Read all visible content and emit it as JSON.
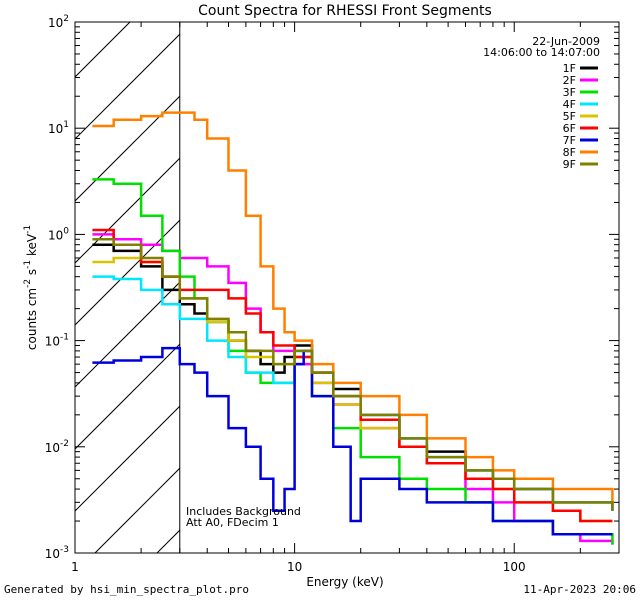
{
  "chart_data": {
    "type": "line",
    "title": "Count Spectra for RHESSI Front Segments",
    "xlabel": "Energy (keV)",
    "ylabel_parts": [
      "counts cm",
      "-2",
      " s",
      "-1",
      " keV",
      "-1"
    ],
    "xscale": "log",
    "yscale": "log",
    "xlim": [
      1,
      300
    ],
    "ylim": [
      0.001,
      100
    ],
    "x_ticks": [
      {
        "v": 1,
        "label": "1"
      },
      {
        "v": 10,
        "label": "10"
      },
      {
        "v": 100,
        "label": "100"
      }
    ],
    "y_ticks": [
      {
        "v": 0.001,
        "base": "10",
        "exp": "-3"
      },
      {
        "v": 0.01,
        "base": "10",
        "exp": "-2"
      },
      {
        "v": 0.1,
        "base": "10",
        "exp": "-1"
      },
      {
        "v": 1,
        "base": "10",
        "exp": "0"
      },
      {
        "v": 10,
        "base": "10",
        "exp": "1"
      },
      {
        "v": 100,
        "base": "10",
        "exp": "2"
      }
    ],
    "date_label": "22-Jun-2009",
    "time_label": "14:06:00 to 14:07:00",
    "annotation_lines": [
      "Includes Background",
      "Att A0, FDecim 1"
    ],
    "hatched_region_max_energy": 3,
    "series": [
      {
        "name": "1F",
        "color": "#000000",
        "points": [
          [
            1.2,
            0.8
          ],
          [
            1.5,
            0.7
          ],
          [
            2,
            0.5
          ],
          [
            2.5,
            0.3
          ],
          [
            3,
            0.22
          ],
          [
            3.5,
            0.18
          ],
          [
            4,
            0.15
          ],
          [
            5,
            0.1
          ],
          [
            6,
            0.08
          ],
          [
            7,
            0.06
          ],
          [
            8,
            0.05
          ],
          [
            9,
            0.07
          ],
          [
            10,
            0.09
          ],
          [
            12,
            0.05
          ],
          [
            15,
            0.035
          ],
          [
            20,
            0.02
          ],
          [
            30,
            0.012
          ],
          [
            40,
            0.009
          ],
          [
            60,
            0.006
          ],
          [
            80,
            0.005
          ],
          [
            100,
            0.004
          ],
          [
            150,
            0.003
          ],
          [
            200,
            0.003
          ],
          [
            280,
            0.0025
          ]
        ]
      },
      {
        "name": "2F",
        "color": "#ff00ff",
        "points": [
          [
            1.2,
            1.0
          ],
          [
            1.5,
            0.9
          ],
          [
            2,
            0.8
          ],
          [
            2.5,
            0.7
          ],
          [
            3,
            0.6
          ],
          [
            4,
            0.5
          ],
          [
            5,
            0.35
          ],
          [
            6,
            0.2
          ],
          [
            7,
            0.12
          ],
          [
            8,
            0.08
          ],
          [
            10,
            0.06
          ],
          [
            12,
            0.04
          ],
          [
            15,
            0.025
          ],
          [
            20,
            0.015
          ],
          [
            30,
            0.01
          ],
          [
            40,
            0.007
          ],
          [
            60,
            0.004
          ],
          [
            80,
            0.003
          ],
          [
            100,
            0.002
          ],
          [
            150,
            0.0015
          ],
          [
            200,
            0.0013
          ],
          [
            280,
            0.0012
          ]
        ]
      },
      {
        "name": "3F",
        "color": "#00e000",
        "points": [
          [
            1.2,
            3.3
          ],
          [
            1.5,
            3.0
          ],
          [
            2,
            1.5
          ],
          [
            2.5,
            0.7
          ],
          [
            3,
            0.4
          ],
          [
            3.5,
            0.25
          ],
          [
            4,
            0.15
          ],
          [
            5,
            0.08
          ],
          [
            6,
            0.05
          ],
          [
            7,
            0.04
          ],
          [
            8,
            0.04
          ],
          [
            10,
            0.08
          ],
          [
            12,
            0.03
          ],
          [
            15,
            0.015
          ],
          [
            20,
            0.008
          ],
          [
            30,
            0.005
          ],
          [
            40,
            0.004
          ],
          [
            60,
            0.003
          ],
          [
            80,
            0.002
          ],
          [
            100,
            0.002
          ],
          [
            150,
            0.0015
          ],
          [
            200,
            0.0015
          ],
          [
            280,
            0.0012
          ]
        ]
      },
      {
        "name": "4F",
        "color": "#00e6ff",
        "points": [
          [
            1.2,
            0.4
          ],
          [
            1.5,
            0.38
          ],
          [
            2,
            0.3
          ],
          [
            2.5,
            0.22
          ],
          [
            3,
            0.16
          ],
          [
            4,
            0.1
          ],
          [
            5,
            0.07
          ],
          [
            6,
            0.05
          ],
          [
            8,
            0.04
          ],
          [
            10,
            0.08
          ],
          [
            12,
            0.05
          ],
          [
            15,
            0.03
          ],
          [
            20,
            0.02
          ],
          [
            30,
            0.012
          ],
          [
            40,
            0.008
          ],
          [
            60,
            0.006
          ],
          [
            80,
            0.005
          ],
          [
            100,
            0.004
          ],
          [
            150,
            0.003
          ],
          [
            200,
            0.003
          ],
          [
            280,
            0.0025
          ]
        ]
      },
      {
        "name": "5F",
        "color": "#d8c400",
        "points": [
          [
            1.2,
            0.55
          ],
          [
            1.5,
            0.6
          ],
          [
            2,
            0.55
          ],
          [
            2.5,
            0.4
          ],
          [
            3,
            0.25
          ],
          [
            4,
            0.15
          ],
          [
            5,
            0.1
          ],
          [
            6,
            0.07
          ],
          [
            8,
            0.06
          ],
          [
            10,
            0.07
          ],
          [
            12,
            0.04
          ],
          [
            15,
            0.025
          ],
          [
            20,
            0.015
          ],
          [
            30,
            0.01
          ],
          [
            40,
            0.007
          ],
          [
            60,
            0.005
          ],
          [
            80,
            0.004
          ],
          [
            100,
            0.003
          ],
          [
            150,
            0.0025
          ],
          [
            200,
            0.002
          ],
          [
            280,
            0.002
          ]
        ]
      },
      {
        "name": "6F",
        "color": "#ff0000",
        "points": [
          [
            1.2,
            1.1
          ],
          [
            1.5,
            0.8
          ],
          [
            2,
            0.55
          ],
          [
            2.5,
            0.4
          ],
          [
            3,
            0.3
          ],
          [
            4,
            0.3
          ],
          [
            5,
            0.25
          ],
          [
            6,
            0.18
          ],
          [
            7,
            0.12
          ],
          [
            8,
            0.09
          ],
          [
            10,
            0.07
          ],
          [
            12,
            0.05
          ],
          [
            15,
            0.03
          ],
          [
            20,
            0.018
          ],
          [
            30,
            0.01
          ],
          [
            40,
            0.007
          ],
          [
            60,
            0.005
          ],
          [
            80,
            0.004
          ],
          [
            100,
            0.003
          ],
          [
            150,
            0.0025
          ],
          [
            200,
            0.002
          ],
          [
            280,
            0.002
          ]
        ]
      },
      {
        "name": "7F",
        "color": "#0000dd",
        "points": [
          [
            1.2,
            0.062
          ],
          [
            1.5,
            0.065
          ],
          [
            2,
            0.07
          ],
          [
            2.5,
            0.085
          ],
          [
            3,
            0.06
          ],
          [
            3.5,
            0.05
          ],
          [
            4,
            0.03
          ],
          [
            5,
            0.015
          ],
          [
            6,
            0.01
          ],
          [
            7,
            0.005
          ],
          [
            8,
            0.0025
          ],
          [
            9,
            0.004
          ],
          [
            10,
            0.06
          ],
          [
            11,
            0.08
          ],
          [
            12,
            0.03
          ],
          [
            15,
            0.01
          ],
          [
            18,
            0.002
          ],
          [
            20,
            0.005
          ],
          [
            30,
            0.004
          ],
          [
            40,
            0.003
          ],
          [
            60,
            0.003
          ],
          [
            80,
            0.002
          ],
          [
            100,
            0.002
          ],
          [
            150,
            0.0015
          ],
          [
            200,
            0.0015
          ],
          [
            280,
            0.0015
          ]
        ]
      },
      {
        "name": "8F",
        "color": "#ff8000",
        "points": [
          [
            1.2,
            10.5
          ],
          [
            1.5,
            12
          ],
          [
            2,
            13
          ],
          [
            2.5,
            14
          ],
          [
            3,
            14
          ],
          [
            3.5,
            12
          ],
          [
            4,
            8
          ],
          [
            5,
            4
          ],
          [
            6,
            1.5
          ],
          [
            7,
            0.5
          ],
          [
            8,
            0.2
          ],
          [
            9,
            0.12
          ],
          [
            10,
            0.1
          ],
          [
            12,
            0.06
          ],
          [
            15,
            0.04
          ],
          [
            20,
            0.03
          ],
          [
            30,
            0.02
          ],
          [
            40,
            0.012
          ],
          [
            60,
            0.008
          ],
          [
            80,
            0.006
          ],
          [
            100,
            0.005
          ],
          [
            150,
            0.004
          ],
          [
            200,
            0.004
          ],
          [
            280,
            0.003
          ]
        ]
      },
      {
        "name": "9F",
        "color": "#808000",
        "points": [
          [
            1.2,
            0.9
          ],
          [
            1.5,
            0.8
          ],
          [
            2,
            0.6
          ],
          [
            2.5,
            0.4
          ],
          [
            3,
            0.25
          ],
          [
            4,
            0.16
          ],
          [
            5,
            0.12
          ],
          [
            6,
            0.08
          ],
          [
            8,
            0.06
          ],
          [
            10,
            0.08
          ],
          [
            12,
            0.05
          ],
          [
            15,
            0.03
          ],
          [
            20,
            0.02
          ],
          [
            30,
            0.012
          ],
          [
            40,
            0.008
          ],
          [
            60,
            0.006
          ],
          [
            80,
            0.005
          ],
          [
            100,
            0.004
          ],
          [
            150,
            0.003
          ],
          [
            200,
            0.003
          ],
          [
            280,
            0.0025
          ]
        ]
      }
    ]
  },
  "footer": {
    "left": "Generated by hsi_min_spectra_plot.pro",
    "right": "11-Apr-2023 20:06"
  }
}
